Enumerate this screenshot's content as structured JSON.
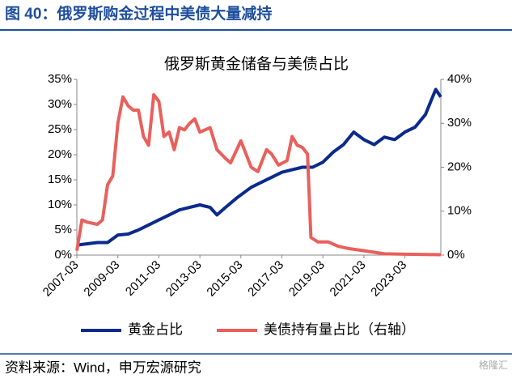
{
  "header": {
    "title": "图 40：俄罗斯购金过程中美债大量减持"
  },
  "chart_data": {
    "type": "line",
    "title": "俄罗斯黄金储备与美债占比",
    "xlim": [
      "2007-03",
      "2024-12"
    ],
    "xticks": [
      "2007-03",
      "2009-03",
      "2011-03",
      "2013-03",
      "2015-03",
      "2017-03",
      "2019-03",
      "2021-03",
      "2023-03"
    ],
    "ylim": [
      0,
      35
    ],
    "yticks": [
      {
        "value": 0,
        "label": "0%"
      },
      {
        "value": 5,
        "label": "5%"
      },
      {
        "value": 10,
        "label": "10%"
      },
      {
        "value": 15,
        "label": "15%"
      },
      {
        "value": 20,
        "label": "20%"
      },
      {
        "value": 25,
        "label": "25%"
      },
      {
        "value": 30,
        "label": "30%"
      },
      {
        "value": 35,
        "label": "35%"
      }
    ],
    "y2lim": [
      0,
      40
    ],
    "y2ticks": [
      {
        "value": 0,
        "label": "0%"
      },
      {
        "value": 10,
        "label": "10%"
      },
      {
        "value": 20,
        "label": "20%"
      },
      {
        "value": 30,
        "label": "30%"
      },
      {
        "value": 40,
        "label": "40%"
      }
    ],
    "series": [
      {
        "name": "黄金占比",
        "color": "#0b2a8c",
        "x": [
          "2007-03",
          "2008-03",
          "2008-09",
          "2009-03",
          "2009-09",
          "2010-03",
          "2010-09",
          "2011-03",
          "2011-09",
          "2012-03",
          "2012-09",
          "2013-03",
          "2013-09",
          "2014-01",
          "2014-06",
          "2015-01",
          "2015-09",
          "2016-03",
          "2016-09",
          "2017-03",
          "2017-09",
          "2018-03",
          "2018-09",
          "2019-03",
          "2019-09",
          "2020-03",
          "2020-09",
          "2021-03",
          "2021-09",
          "2022-03",
          "2022-09",
          "2023-03",
          "2023-09",
          "2024-03",
          "2024-06",
          "2024-09",
          "2024-12"
        ],
        "values": [
          2,
          2.5,
          2.5,
          4,
          4.2,
          5,
          6,
          7,
          8,
          9,
          9.5,
          10,
          9.5,
          8,
          9.5,
          11.5,
          13.5,
          14.5,
          15.5,
          16.5,
          17,
          17.5,
          17.5,
          18.5,
          20.5,
          22,
          24.5,
          23,
          22,
          23.5,
          23,
          24.5,
          25.5,
          28,
          30.5,
          33,
          31.5
        ]
      },
      {
        "name": "美债持有量占比（右轴）",
        "color": "#e8605c",
        "axis": "y2",
        "x": [
          "2007-03",
          "2007-06",
          "2007-09",
          "2008-03",
          "2008-06",
          "2008-09",
          "2008-12",
          "2009-03",
          "2009-06",
          "2009-09",
          "2009-12",
          "2010-03",
          "2010-06",
          "2010-09",
          "2010-12",
          "2011-03",
          "2011-06",
          "2011-09",
          "2011-12",
          "2012-03",
          "2012-06",
          "2012-09",
          "2012-12",
          "2013-03",
          "2013-09",
          "2014-01",
          "2014-06",
          "2014-09",
          "2015-03",
          "2015-06",
          "2015-09",
          "2016-01",
          "2016-06",
          "2016-09",
          "2017-01",
          "2017-06",
          "2017-09",
          "2017-12",
          "2018-03",
          "2018-06",
          "2018-08",
          "2018-12",
          "2019-06",
          "2019-12",
          "2020-06",
          "2021-03",
          "2022-03",
          "2023-03",
          "2024-12"
        ],
        "values": [
          1,
          8,
          7.5,
          7,
          8,
          16,
          18,
          30,
          36,
          34,
          33,
          33,
          27,
          25,
          36.5,
          35,
          27,
          28,
          24,
          29,
          28.5,
          30,
          31,
          28,
          29,
          24,
          22,
          21,
          26,
          23,
          20,
          19,
          24,
          23,
          20.5,
          21.5,
          27,
          25,
          24.5,
          23,
          4,
          3,
          3,
          2,
          1.5,
          1,
          0.3,
          0.2,
          0.1
        ]
      }
    ]
  },
  "footer": {
    "source": "资料来源：Wind，申万宏源研究",
    "watermark": "格隆汇"
  }
}
